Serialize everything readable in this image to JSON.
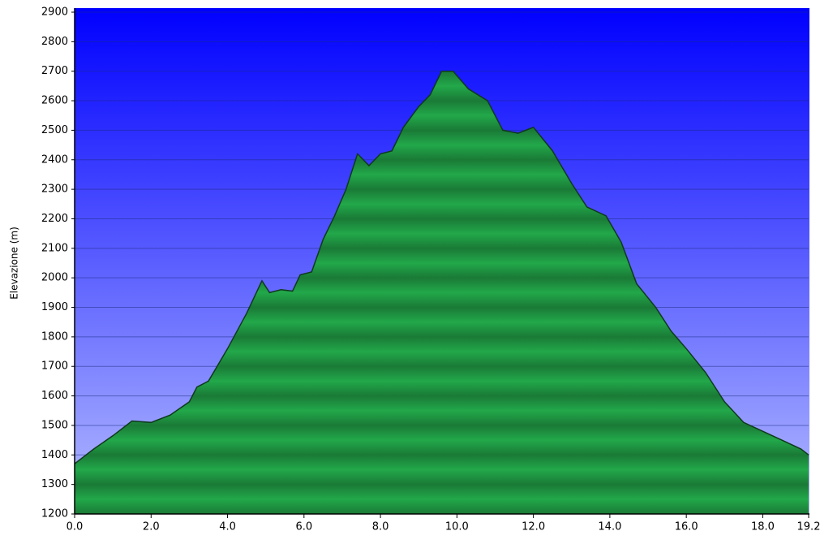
{
  "chart_data": {
    "type": "area",
    "y_label": "Elevazione (m)",
    "x": [
      0,
      0.5,
      1.0,
      1.5,
      2.0,
      2.5,
      3.0,
      3.2,
      3.5,
      4.0,
      4.5,
      4.9,
      5.1,
      5.4,
      5.7,
      5.9,
      6.2,
      6.5,
      6.8,
      7.1,
      7.4,
      7.7,
      8.0,
      8.3,
      8.6,
      9.0,
      9.3,
      9.6,
      9.9,
      10.3,
      10.8,
      11.2,
      11.6,
      12.0,
      12.5,
      13.0,
      13.4,
      13.9,
      14.3,
      14.7,
      15.2,
      15.6,
      16.0,
      16.5,
      17.0,
      17.5,
      18.0,
      18.5,
      19.0,
      19.2
    ],
    "values": [
      1370,
      1420,
      1465,
      1515,
      1510,
      1535,
      1580,
      1630,
      1650,
      1760,
      1880,
      1990,
      1950,
      1960,
      1955,
      2010,
      2020,
      2130,
      2210,
      2300,
      2420,
      2380,
      2420,
      2430,
      2510,
      2580,
      2620,
      2700,
      2700,
      2640,
      2600,
      2500,
      2490,
      2510,
      2430,
      2320,
      2240,
      2210,
      2120,
      1980,
      1900,
      1820,
      1760,
      1680,
      1580,
      1510,
      1480,
      1450,
      1420,
      1400
    ],
    "color": "#22a84a",
    "xlim": [
      0,
      19.2
    ],
    "ylim": [
      1200,
      2900
    ],
    "xticks": [
      {
        "value": 0,
        "label": "0.0"
      },
      {
        "value": 2,
        "label": "2.0"
      },
      {
        "value": 4,
        "label": "4.0"
      },
      {
        "value": 6,
        "label": "6.0"
      },
      {
        "value": 8,
        "label": "8.0"
      },
      {
        "value": 10,
        "label": "10.0"
      },
      {
        "value": 12,
        "label": "12.0"
      },
      {
        "value": 14,
        "label": "14.0"
      },
      {
        "value": 16,
        "label": "16.0"
      },
      {
        "value": 18,
        "label": "18.0"
      },
      19.2
    ],
    "yticks": [
      1200,
      1300,
      1400,
      1500,
      1600,
      1700,
      1800,
      1900,
      2000,
      2100,
      2200,
      2300,
      2400,
      2500,
      2600,
      2700,
      2800,
      2900
    ],
    "grid": true
  }
}
